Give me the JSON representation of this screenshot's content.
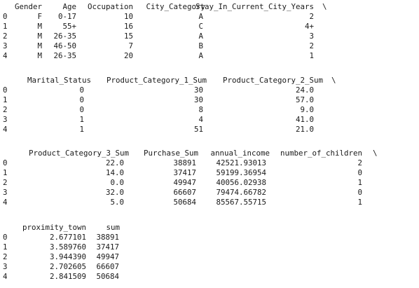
{
  "blocks": [
    {
      "columns": [
        "Gender",
        "Age",
        "Occupation",
        "City_Category",
        "Stay_In_Current_City_Years"
      ],
      "continuation": "\\",
      "rows": [
        {
          "index": "0",
          "cells": [
            "F",
            "0-17",
            "10",
            "A",
            "2"
          ]
        },
        {
          "index": "1",
          "cells": [
            "M",
            "55+",
            "16",
            "C",
            "4+"
          ]
        },
        {
          "index": "2",
          "cells": [
            "M",
            "26-35",
            "15",
            "A",
            "3"
          ]
        },
        {
          "index": "3",
          "cells": [
            "M",
            "46-50",
            "7",
            "B",
            "2"
          ]
        },
        {
          "index": "4",
          "cells": [
            "M",
            "26-35",
            "20",
            "A",
            "1"
          ]
        }
      ]
    },
    {
      "columns": [
        "Marital_Status",
        "Product_Category_1_Sum",
        "Product_Category_2_Sum"
      ],
      "continuation": "\\",
      "rows": [
        {
          "index": "0",
          "cells": [
            "0",
            "30",
            "24.0"
          ]
        },
        {
          "index": "1",
          "cells": [
            "0",
            "30",
            "57.0"
          ]
        },
        {
          "index": "2",
          "cells": [
            "0",
            "8",
            "9.0"
          ]
        },
        {
          "index": "3",
          "cells": [
            "1",
            "4",
            "41.0"
          ]
        },
        {
          "index": "4",
          "cells": [
            "1",
            "51",
            "21.0"
          ]
        }
      ]
    },
    {
      "columns": [
        "Product_Category_3_Sum",
        "Purchase_Sum",
        "annual_income",
        "number_of_children"
      ],
      "continuation": "\\",
      "rows": [
        {
          "index": "0",
          "cells": [
            "22.0",
            "38891",
            "42521.93013",
            "2"
          ]
        },
        {
          "index": "1",
          "cells": [
            "14.0",
            "37417",
            "59199.36954",
            "0"
          ]
        },
        {
          "index": "2",
          "cells": [
            "0.0",
            "49947",
            "40056.02938",
            "1"
          ]
        },
        {
          "index": "3",
          "cells": [
            "32.0",
            "66607",
            "79474.66782",
            "0"
          ]
        },
        {
          "index": "4",
          "cells": [
            "5.0",
            "50684",
            "85567.55715",
            "1"
          ]
        }
      ]
    },
    {
      "columns": [
        "proximity_town",
        "sum"
      ],
      "continuation": "",
      "rows": [
        {
          "index": "0",
          "cells": [
            "2.677101",
            "38891"
          ]
        },
        {
          "index": "1",
          "cells": [
            "3.589760",
            "37417"
          ]
        },
        {
          "index": "2",
          "cells": [
            "3.944390",
            "49947"
          ]
        },
        {
          "index": "3",
          "cells": [
            "2.702605",
            "66607"
          ]
        },
        {
          "index": "4",
          "cells": [
            "2.841509",
            "50684"
          ]
        }
      ]
    }
  ]
}
